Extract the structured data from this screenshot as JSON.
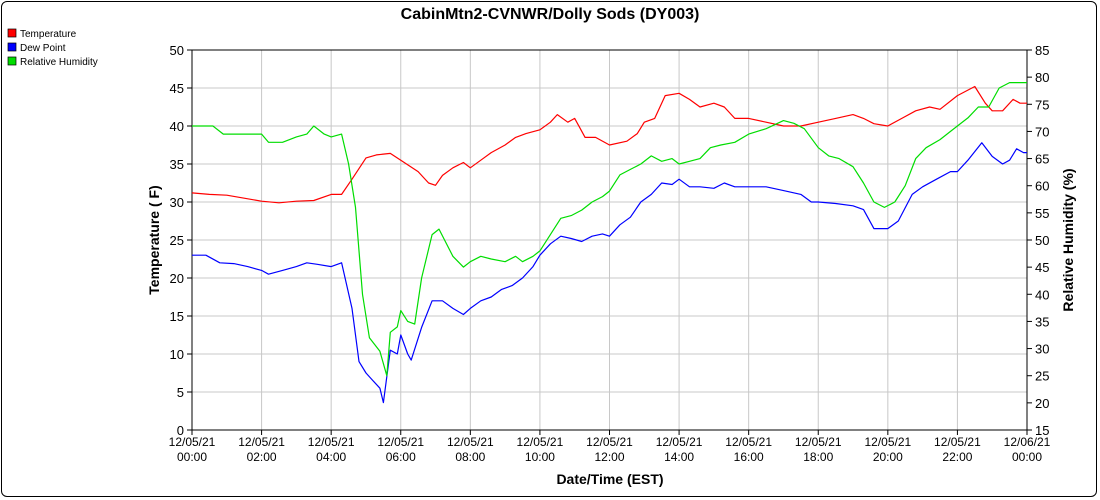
{
  "chart_data": {
    "type": "line",
    "title": "CabinMtn2-CVNWR/Dolly Sods (DY003)",
    "xlabel": "Date/Time (EST)",
    "ylabel_left": "Temperature ( F)",
    "ylabel_right": "Relative Humidity (%)",
    "ylim_left": [
      0,
      50
    ],
    "ylim_right": [
      15,
      85
    ],
    "yticks_left": [
      "0",
      "5",
      "10",
      "15",
      "20",
      "25",
      "30",
      "35",
      "40",
      "45",
      "50"
    ],
    "yticks_right": [
      "15",
      "20",
      "25",
      "30",
      "35",
      "40",
      "45",
      "50",
      "55",
      "60",
      "65",
      "70",
      "75",
      "80",
      "85"
    ],
    "grid": true,
    "legend_position": "top-left",
    "x_range": [
      0,
      24
    ],
    "x_ticks": [
      {
        "x": 0,
        "date": "12/05/21",
        "time": "00:00"
      },
      {
        "x": 2,
        "date": "12/05/21",
        "time": "02:00"
      },
      {
        "x": 4,
        "date": "12/05/21",
        "time": "04:00"
      },
      {
        "x": 6,
        "date": "12/05/21",
        "time": "06:00"
      },
      {
        "x": 8,
        "date": "12/05/21",
        "time": "08:00"
      },
      {
        "x": 10,
        "date": "12/05/21",
        "time": "10:00"
      },
      {
        "x": 12,
        "date": "12/05/21",
        "time": "12:00"
      },
      {
        "x": 14,
        "date": "12/05/21",
        "time": "14:00"
      },
      {
        "x": 16,
        "date": "12/05/21",
        "time": "16:00"
      },
      {
        "x": 18,
        "date": "12/05/21",
        "time": "18:00"
      },
      {
        "x": 20,
        "date": "12/05/21",
        "time": "20:00"
      },
      {
        "x": 22,
        "date": "12/05/21",
        "time": "22:00"
      },
      {
        "x": 24,
        "date": "12/06/21",
        "time": "00:00"
      }
    ],
    "series": [
      {
        "name": "Temperature",
        "color": "#ff0000",
        "axis": "left",
        "points": [
          [
            0,
            31.2
          ],
          [
            0.5,
            31.0
          ],
          [
            1,
            30.9
          ],
          [
            1.5,
            30.5
          ],
          [
            2,
            30.1
          ],
          [
            2.5,
            29.9
          ],
          [
            3,
            30.1
          ],
          [
            3.5,
            30.2
          ],
          [
            4,
            31.0
          ],
          [
            4.3,
            31.0
          ],
          [
            4.6,
            33.0
          ],
          [
            5,
            35.8
          ],
          [
            5.3,
            36.2
          ],
          [
            5.7,
            36.4
          ],
          [
            6,
            35.5
          ],
          [
            6.5,
            34.0
          ],
          [
            6.8,
            32.5
          ],
          [
            7,
            32.2
          ],
          [
            7.2,
            33.5
          ],
          [
            7.5,
            34.5
          ],
          [
            7.8,
            35.2
          ],
          [
            8,
            34.5
          ],
          [
            8.3,
            35.5
          ],
          [
            8.6,
            36.5
          ],
          [
            9,
            37.5
          ],
          [
            9.3,
            38.5
          ],
          [
            9.6,
            39.0
          ],
          [
            10,
            39.5
          ],
          [
            10.3,
            40.5
          ],
          [
            10.5,
            41.5
          ],
          [
            10.8,
            40.5
          ],
          [
            11,
            41.0
          ],
          [
            11.3,
            38.5
          ],
          [
            11.6,
            38.5
          ],
          [
            12,
            37.5
          ],
          [
            12.5,
            38.0
          ],
          [
            12.8,
            39.0
          ],
          [
            13,
            40.5
          ],
          [
            13.3,
            41.0
          ],
          [
            13.6,
            44.0
          ],
          [
            14,
            44.3
          ],
          [
            14.3,
            43.5
          ],
          [
            14.6,
            42.5
          ],
          [
            15,
            43.0
          ],
          [
            15.3,
            42.5
          ],
          [
            15.6,
            41.0
          ],
          [
            16,
            41.0
          ],
          [
            16.5,
            40.5
          ],
          [
            17,
            40.0
          ],
          [
            17.5,
            40.0
          ],
          [
            18,
            40.5
          ],
          [
            18.5,
            41.0
          ],
          [
            19,
            41.5
          ],
          [
            19.3,
            41.0
          ],
          [
            19.6,
            40.3
          ],
          [
            20,
            40.0
          ],
          [
            20.4,
            41.0
          ],
          [
            20.8,
            42.0
          ],
          [
            21.2,
            42.5
          ],
          [
            21.5,
            42.2
          ],
          [
            22,
            44.0
          ],
          [
            22.5,
            45.2
          ],
          [
            22.8,
            43.0
          ],
          [
            23,
            42.0
          ],
          [
            23.3,
            42.0
          ],
          [
            23.6,
            43.5
          ],
          [
            23.8,
            43.0
          ],
          [
            24,
            43.0
          ]
        ]
      },
      {
        "name": "Dew Point",
        "color": "#0000ff",
        "axis": "left",
        "points": [
          [
            0,
            23.0
          ],
          [
            0.4,
            23.0
          ],
          [
            0.8,
            22.0
          ],
          [
            1.2,
            21.9
          ],
          [
            1.6,
            21.5
          ],
          [
            2,
            21.0
          ],
          [
            2.2,
            20.5
          ],
          [
            2.6,
            21.0
          ],
          [
            3,
            21.5
          ],
          [
            3.3,
            22.0
          ],
          [
            3.6,
            21.8
          ],
          [
            4,
            21.5
          ],
          [
            4.3,
            22.0
          ],
          [
            4.6,
            16.0
          ],
          [
            4.8,
            9.0
          ],
          [
            5,
            7.5
          ],
          [
            5.2,
            6.5
          ],
          [
            5.4,
            5.5
          ],
          [
            5.5,
            3.6
          ],
          [
            5.7,
            10.5
          ],
          [
            5.9,
            10.0
          ],
          [
            6,
            12.5
          ],
          [
            6.2,
            10.0
          ],
          [
            6.3,
            9.2
          ],
          [
            6.6,
            13.5
          ],
          [
            6.9,
            17.0
          ],
          [
            7.2,
            17.0
          ],
          [
            7.5,
            16.0
          ],
          [
            7.8,
            15.2
          ],
          [
            8,
            16.0
          ],
          [
            8.3,
            17.0
          ],
          [
            8.6,
            17.5
          ],
          [
            8.9,
            18.5
          ],
          [
            9.2,
            19.0
          ],
          [
            9.5,
            20.0
          ],
          [
            9.8,
            21.5
          ],
          [
            10,
            23.0
          ],
          [
            10.3,
            24.5
          ],
          [
            10.6,
            25.5
          ],
          [
            10.9,
            25.2
          ],
          [
            11.2,
            24.8
          ],
          [
            11.5,
            25.5
          ],
          [
            11.8,
            25.8
          ],
          [
            12,
            25.5
          ],
          [
            12.3,
            27.0
          ],
          [
            12.6,
            28.0
          ],
          [
            12.9,
            30.0
          ],
          [
            13.2,
            31.0
          ],
          [
            13.5,
            32.5
          ],
          [
            13.8,
            32.3
          ],
          [
            14,
            33.0
          ],
          [
            14.3,
            32.0
          ],
          [
            14.6,
            32.0
          ],
          [
            15,
            31.8
          ],
          [
            15.3,
            32.5
          ],
          [
            15.6,
            32.0
          ],
          [
            16,
            32.0
          ],
          [
            16.5,
            32.0
          ],
          [
            17,
            31.5
          ],
          [
            17.5,
            31.0
          ],
          [
            17.8,
            30.0
          ],
          [
            18,
            30.0
          ],
          [
            18.5,
            29.8
          ],
          [
            19,
            29.5
          ],
          [
            19.3,
            29.0
          ],
          [
            19.6,
            26.5
          ],
          [
            20,
            26.5
          ],
          [
            20.3,
            27.5
          ],
          [
            20.7,
            31.0
          ],
          [
            21,
            32.0
          ],
          [
            21.4,
            33.0
          ],
          [
            21.8,
            34.0
          ],
          [
            22,
            34.0
          ],
          [
            22.3,
            35.5
          ],
          [
            22.7,
            37.8
          ],
          [
            23,
            36.0
          ],
          [
            23.3,
            35.0
          ],
          [
            23.5,
            35.5
          ],
          [
            23.7,
            37.0
          ],
          [
            23.9,
            36.5
          ],
          [
            24,
            36.5
          ]
        ]
      },
      {
        "name": "Relative Humidity",
        "color": "#00dd00",
        "axis": "right",
        "points": [
          [
            0,
            71.0
          ],
          [
            0.3,
            71.0
          ],
          [
            0.6,
            71.0
          ],
          [
            0.9,
            69.5
          ],
          [
            1.2,
            69.5
          ],
          [
            1.6,
            69.5
          ],
          [
            2,
            69.5
          ],
          [
            2.2,
            68.0
          ],
          [
            2.6,
            68.0
          ],
          [
            3,
            69.0
          ],
          [
            3.3,
            69.5
          ],
          [
            3.5,
            71.0
          ],
          [
            3.8,
            69.5
          ],
          [
            4,
            69.0
          ],
          [
            4.3,
            69.5
          ],
          [
            4.5,
            64.0
          ],
          [
            4.7,
            56.0
          ],
          [
            4.9,
            40.0
          ],
          [
            5.1,
            32.0
          ],
          [
            5.4,
            29.5
          ],
          [
            5.6,
            25.0
          ],
          [
            5.7,
            33.0
          ],
          [
            5.9,
            34.0
          ],
          [
            6,
            37.0
          ],
          [
            6.2,
            35.0
          ],
          [
            6.4,
            34.5
          ],
          [
            6.6,
            43.0
          ],
          [
            6.9,
            51.0
          ],
          [
            7.1,
            52.0
          ],
          [
            7.5,
            47.0
          ],
          [
            7.8,
            45.0
          ],
          [
            8,
            46.0
          ],
          [
            8.3,
            47.0
          ],
          [
            8.6,
            46.5
          ],
          [
            9,
            46.0
          ],
          [
            9.3,
            47.0
          ],
          [
            9.5,
            46.0
          ],
          [
            9.8,
            47.0
          ],
          [
            10,
            48.0
          ],
          [
            10.3,
            51.0
          ],
          [
            10.6,
            54.0
          ],
          [
            10.9,
            54.5
          ],
          [
            11.2,
            55.5
          ],
          [
            11.5,
            57.0
          ],
          [
            11.8,
            58.0
          ],
          [
            12,
            59.0
          ],
          [
            12.3,
            62.0
          ],
          [
            12.6,
            63.0
          ],
          [
            12.9,
            64.0
          ],
          [
            13.2,
            65.5
          ],
          [
            13.5,
            64.5
          ],
          [
            13.8,
            65.0
          ],
          [
            14,
            64.0
          ],
          [
            14.3,
            64.5
          ],
          [
            14.6,
            65.0
          ],
          [
            14.9,
            67.0
          ],
          [
            15.2,
            67.5
          ],
          [
            15.6,
            68.0
          ],
          [
            16,
            69.5
          ],
          [
            16.5,
            70.5
          ],
          [
            17,
            72.0
          ],
          [
            17.3,
            71.5
          ],
          [
            17.6,
            70.5
          ],
          [
            18,
            67.0
          ],
          [
            18.3,
            65.5
          ],
          [
            18.6,
            65.0
          ],
          [
            19,
            63.5
          ],
          [
            19.3,
            60.5
          ],
          [
            19.6,
            57.0
          ],
          [
            19.9,
            56.0
          ],
          [
            20.2,
            57.0
          ],
          [
            20.5,
            60.0
          ],
          [
            20.8,
            65.0
          ],
          [
            21.1,
            67.0
          ],
          [
            21.5,
            68.5
          ],
          [
            21.8,
            70.0
          ],
          [
            22,
            71.0
          ],
          [
            22.3,
            72.5
          ],
          [
            22.6,
            74.5
          ],
          [
            22.9,
            74.5
          ],
          [
            23.2,
            78.0
          ],
          [
            23.5,
            79.0
          ],
          [
            23.8,
            79.0
          ],
          [
            24,
            79.0
          ]
        ]
      }
    ]
  }
}
